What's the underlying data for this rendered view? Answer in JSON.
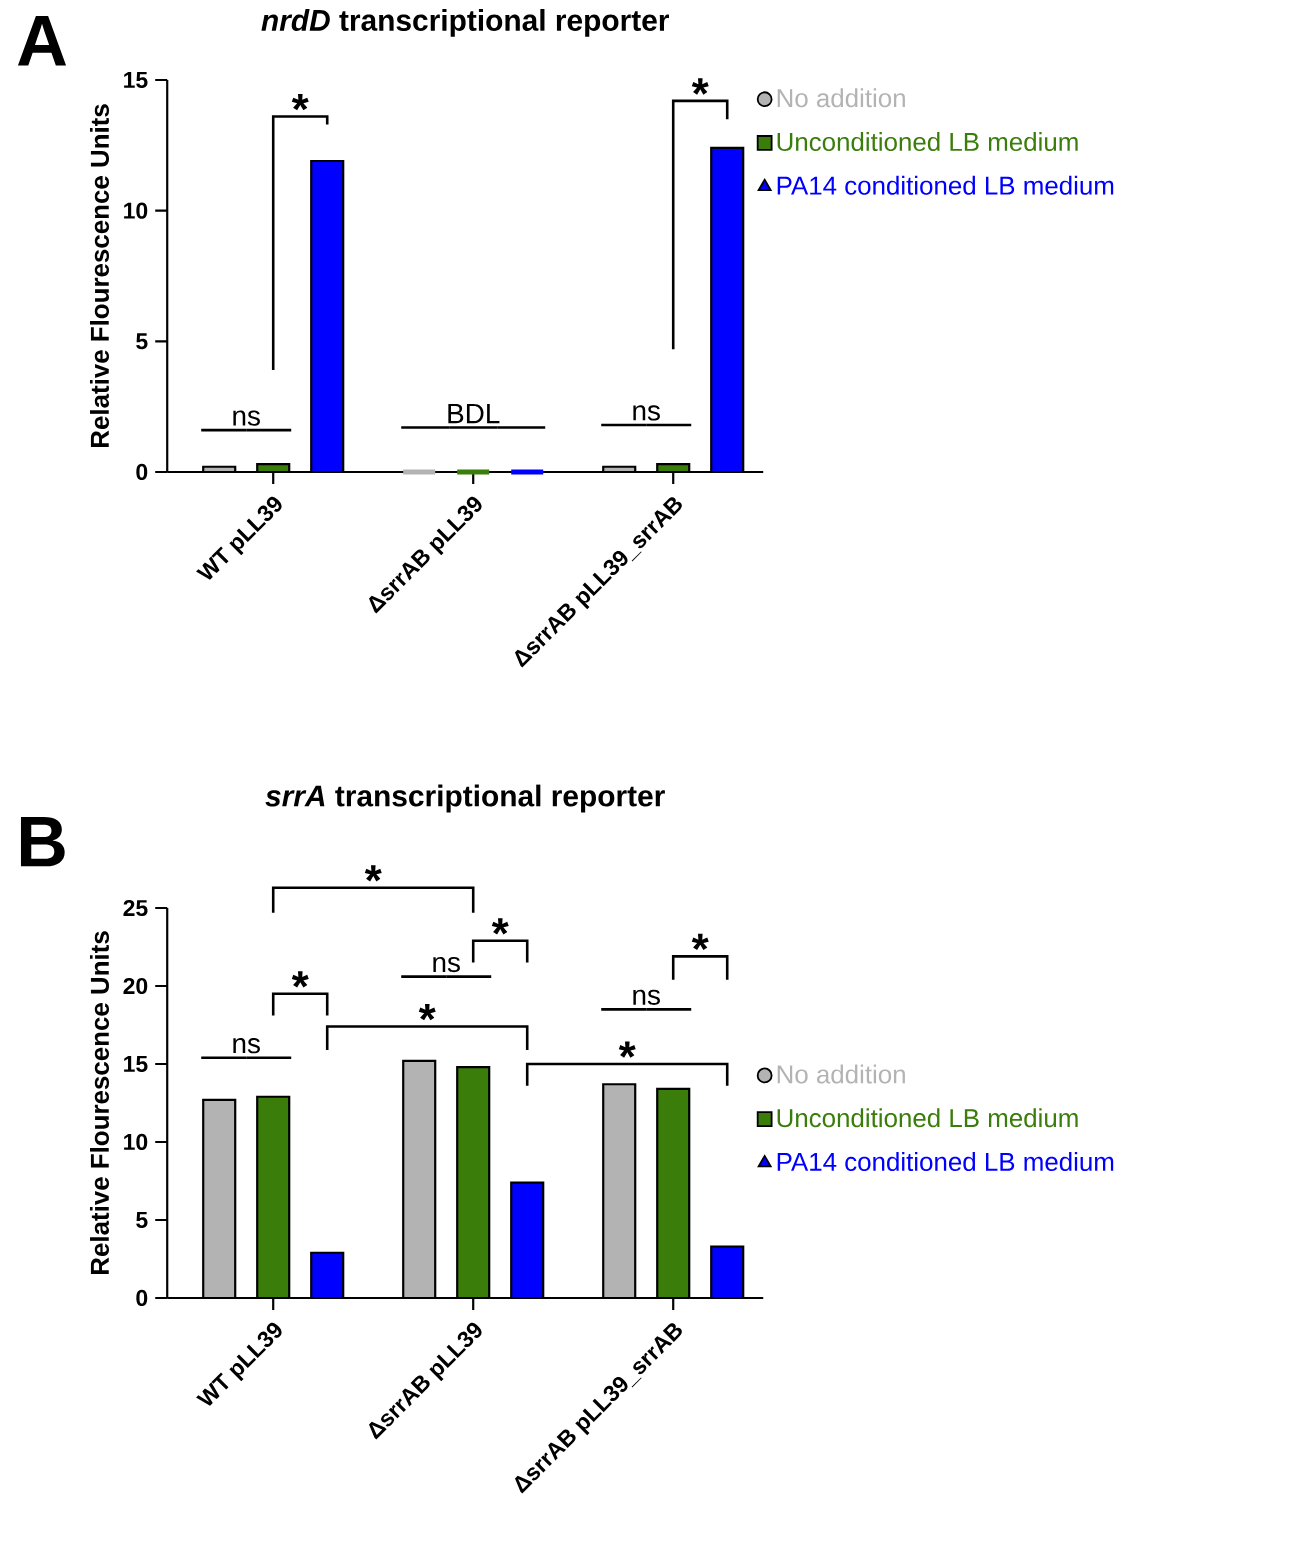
{
  "chart_data": [
    {
      "type": "bar",
      "title": "*nrdD* transcriptional reporter",
      "ylabel": "Relative Flourescence Units",
      "categories": [
        "WT pLL39",
        "ΔsrrAB pLL39",
        "ΔsrrAB pLL39_srrAB"
      ],
      "series": [
        {
          "name": "No addition",
          "color": "#b3b3b3",
          "marker": "circle",
          "values": [
            0.2,
            0,
            0.2
          ]
        },
        {
          "name": "Unconditioned LB medium",
          "color": "#3a7d0a",
          "marker": "square",
          "values": [
            0.3,
            0,
            0.3
          ]
        },
        {
          "name": "PA14 conditioned LB medium",
          "color": "#0000ff",
          "marker": "triangle",
          "values": [
            11.9,
            0,
            12.4
          ]
        }
      ],
      "ylim": [
        0,
        15
      ],
      "yticks": [
        0,
        5,
        10,
        15
      ],
      "legend": "right",
      "annotations": [
        "A",
        "ns",
        "*",
        "BDL",
        "ns",
        "*"
      ]
    },
    {
      "type": "bar",
      "title": "*srrA* transcriptional reporter",
      "ylabel": "Relative Flourescence Units",
      "categories": [
        "WT pLL39",
        "ΔsrrAB pLL39",
        "ΔsrrAB pLL39_srrAB"
      ],
      "series": [
        {
          "name": "No addition",
          "color": "#b3b3b3",
          "marker": "circle",
          "values": [
            12.7,
            15.2,
            13.7
          ]
        },
        {
          "name": "Unconditioned LB medium",
          "color": "#3a7d0a",
          "marker": "square",
          "values": [
            12.9,
            14.8,
            13.4
          ]
        },
        {
          "name": "PA14 conditioned LB medium",
          "color": "#0000ff",
          "marker": "triangle",
          "values": [
            2.9,
            7.4,
            3.3
          ]
        }
      ],
      "ylim": [
        0,
        25
      ],
      "yticks": [
        0,
        5,
        10,
        15,
        20,
        25
      ],
      "legend": "right",
      "annotations": [
        "B",
        "ns",
        "*",
        "*",
        "*",
        "ns",
        "*",
        "*",
        "ns",
        "*"
      ]
    }
  ]
}
